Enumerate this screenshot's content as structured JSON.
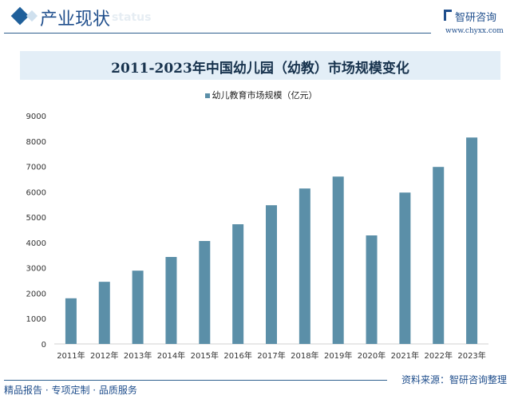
{
  "header": {
    "section": "产业现状",
    "ghost": "status",
    "brand": "智研咨询",
    "url": "www.chyxx.com"
  },
  "footer": {
    "tagline": "精品报告 · 专项定制 · 品质服务",
    "source": "资料来源：智研咨询整理"
  },
  "colors": {
    "bar": "#5b8fa8",
    "accent": "#1f4e8c"
  },
  "chart_data": {
    "type": "bar",
    "title": "2011-2023年中国幼儿园（幼教）市场规模变化",
    "legend": "幼儿教育市场规模（亿元）",
    "legend_position": "top-center",
    "categories": [
      "2011年",
      "2012年",
      "2013年",
      "2014年",
      "2015年",
      "2016年",
      "2017年",
      "2018年",
      "2019年",
      "2020年",
      "2021年",
      "2022年",
      "2023年"
    ],
    "values": [
      1800,
      2450,
      2890,
      3430,
      4060,
      4720,
      5470,
      6130,
      6600,
      4280,
      5970,
      6980,
      8140
    ],
    "ylim": [
      0,
      9000
    ],
    "yticks": [
      "0",
      "1000",
      "2000",
      "3000",
      "4000",
      "5000",
      "6000",
      "7000",
      "8000",
      "9000"
    ],
    "xlabel": "",
    "ylabel": "",
    "grid": false
  }
}
